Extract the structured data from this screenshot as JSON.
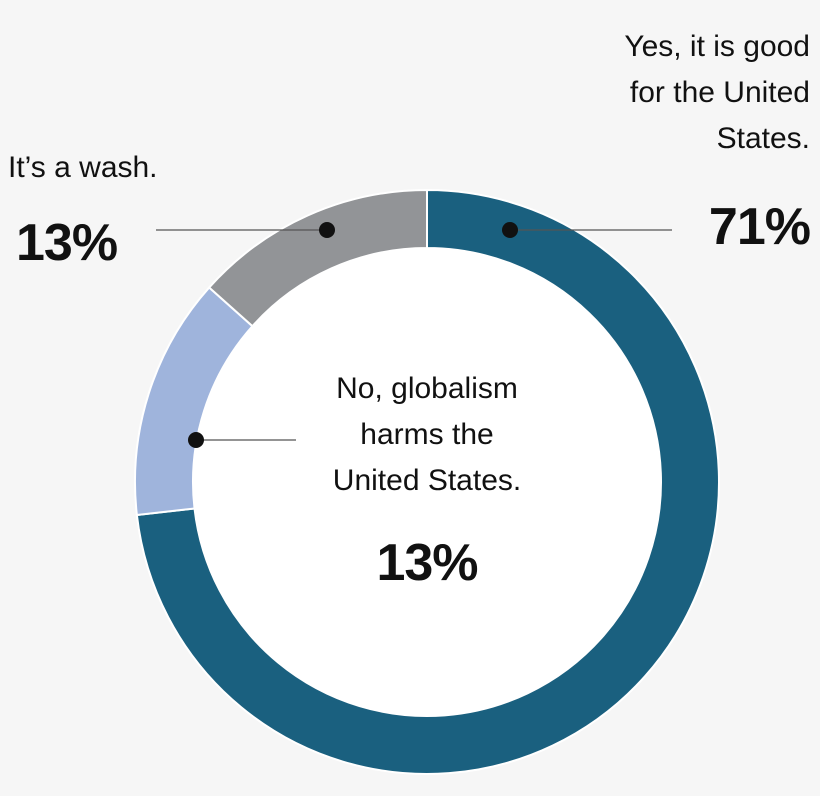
{
  "chart_data": {
    "type": "pie",
    "variant": "donut",
    "slices": [
      {
        "label_lines": [
          "Yes, it is good",
          "for the United",
          "States."
        ],
        "percent_label": "71%",
        "value": 71,
        "color": "#1a607f"
      },
      {
        "label_lines": [
          "No, globalism",
          "harms the",
          "United States."
        ],
        "percent_label": "13%",
        "value": 13,
        "color": "#9fb4dc"
      },
      {
        "label_lines": [
          "It’s a wash."
        ],
        "percent_label": "13%",
        "value": 13,
        "color": "#929497"
      }
    ],
    "colors": {
      "background": "#f6f6f6",
      "hole": "#ffffff",
      "separator": "#ffffff",
      "leader": "#111111"
    }
  }
}
